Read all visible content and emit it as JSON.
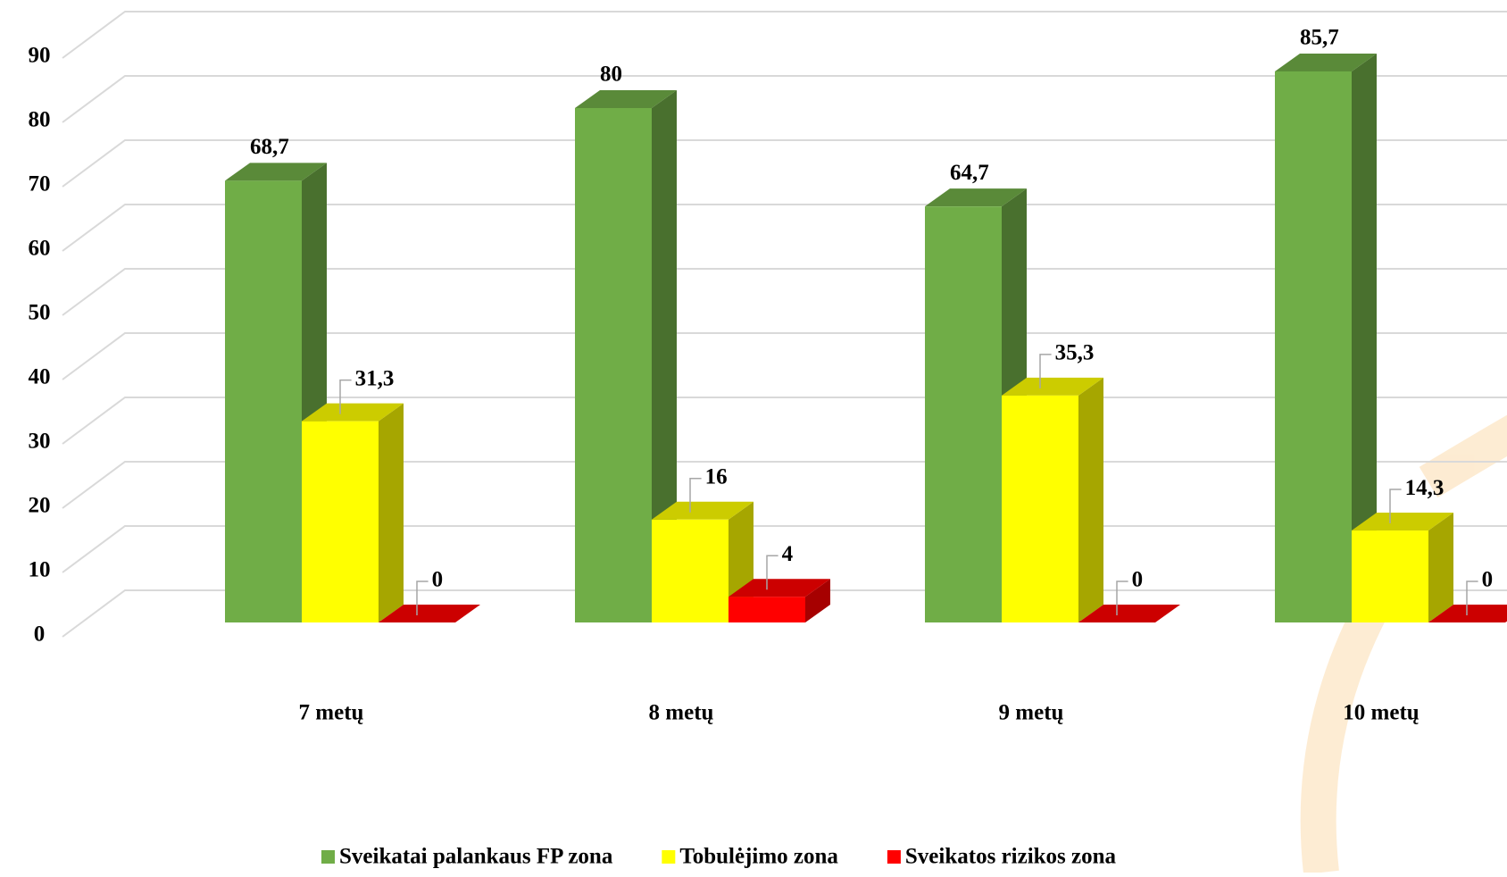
{
  "chart_data": {
    "type": "bar3d",
    "categories": [
      "7 metų",
      "8 metų",
      "9 metų",
      "10 metų"
    ],
    "series": [
      {
        "name": "Sveikatai palankaus FP zona",
        "color": "#70ad47",
        "values": [
          68.7,
          80,
          64.7,
          85.7
        ],
        "value_labels": [
          "68,7",
          "80",
          "64,7",
          "85,7"
        ]
      },
      {
        "name": "Tobulėjimo zona",
        "color": "#ffff00",
        "values": [
          31.3,
          16,
          35.3,
          14.3
        ],
        "value_labels": [
          "31,3",
          "16",
          "35,3",
          "14,3"
        ]
      },
      {
        "name": "Sveikatos rizikos zona",
        "color": "#ff0000",
        "values": [
          0,
          4,
          0,
          0
        ],
        "value_labels": [
          "0",
          "4",
          "0",
          "0"
        ]
      }
    ],
    "ylim": [
      0,
      90
    ],
    "yticks": [
      0,
      10,
      20,
      30,
      40,
      50,
      60,
      70,
      80,
      90
    ],
    "grid": true,
    "legend": "bottom"
  }
}
